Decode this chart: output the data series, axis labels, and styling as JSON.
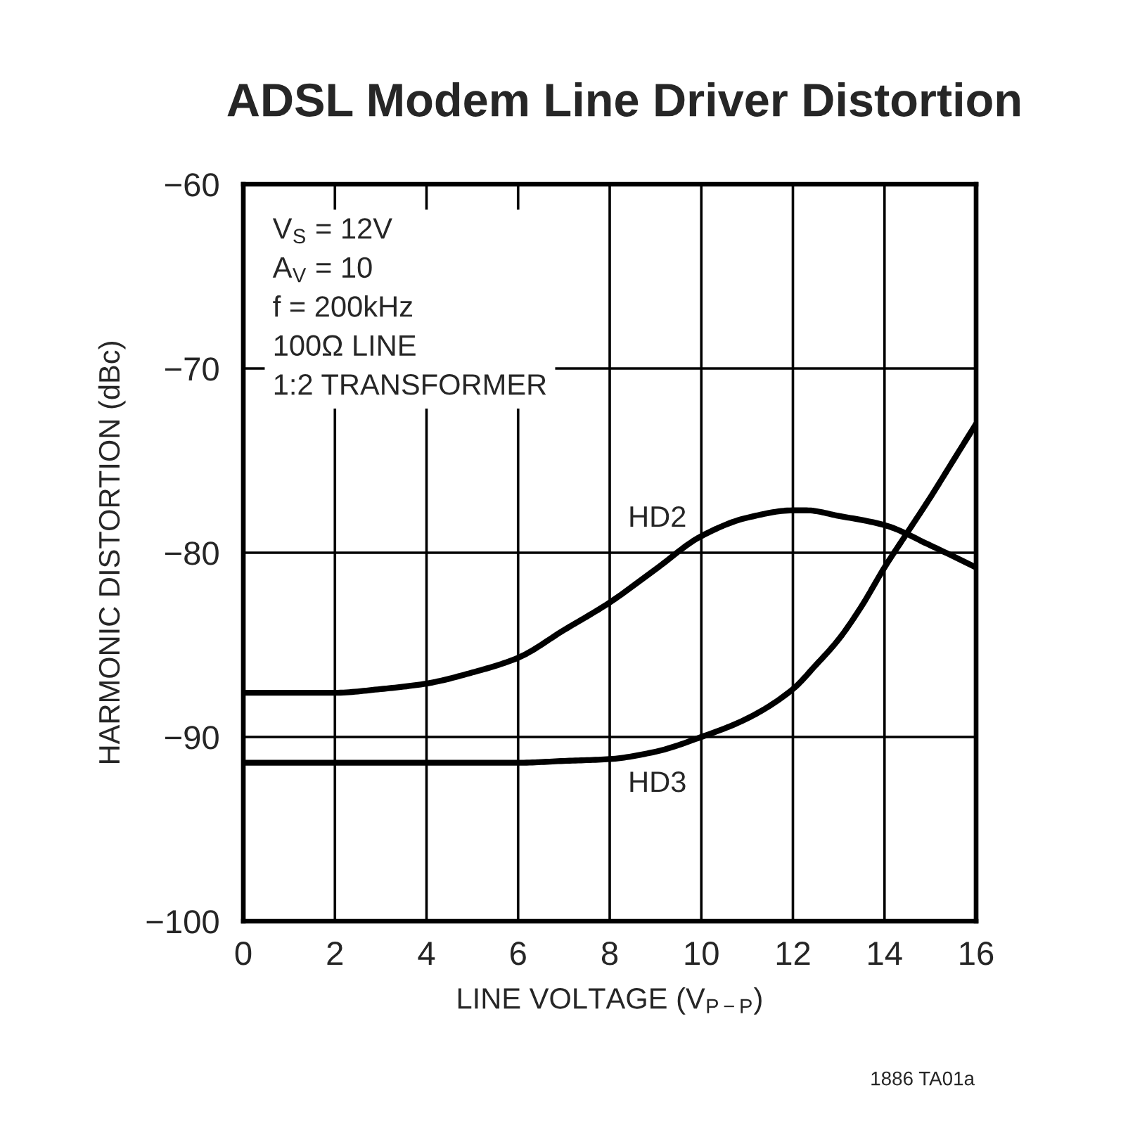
{
  "chart_data": {
    "type": "line",
    "title": "ADSL Modem Line Driver Distortion",
    "xlabel": "LINE VOLTAGE (V$_{P−P}$)",
    "ylabel": "HARMONIC DISTORTION (dBc)",
    "annotations": [
      "V$_{S}$ = 12V\nA$_{V}$ = 10\nf = 200kHz\n100Ω LINE\n1:2 TRANSFORMER",
      "1886 TA01a"
    ],
    "xlim": [
      0,
      16
    ],
    "ylim": [
      -100,
      -60
    ],
    "xticks": [
      0,
      2,
      4,
      6,
      8,
      10,
      12,
      14,
      16
    ],
    "yticks": [
      {
        "value": -100,
        "label": "−100"
      },
      {
        "value": -90,
        "label": "−90"
      },
      {
        "value": -80,
        "label": "−80"
      },
      {
        "value": -70,
        "label": "−70"
      },
      {
        "value": -60,
        "label": "−60"
      }
    ],
    "grid": true,
    "series": [
      {
        "name": "HD2",
        "color": "#000000",
        "x": [
          0,
          1,
          2,
          3,
          4,
          5,
          6,
          7,
          8,
          9,
          10,
          11,
          12,
          12.3,
          13,
          14,
          15,
          16
        ],
        "values": [
          -87.6,
          -87.6,
          -87.6,
          -87.4,
          -87.1,
          -86.5,
          -85.7,
          -84.2,
          -82.7,
          -80.9,
          -79.1,
          -78.1,
          -77.7,
          -77.7,
          -78.0,
          -78.5,
          -79.6,
          -80.8
        ]
      },
      {
        "name": "HD3",
        "color": "#000000",
        "x": [
          0,
          2,
          4,
          6,
          7,
          8,
          9,
          10,
          11,
          12,
          12.5,
          13,
          13.5,
          14,
          14.5,
          15,
          15.5,
          16
        ],
        "values": [
          -91.4,
          -91.4,
          -91.4,
          -91.4,
          -91.3,
          -91.2,
          -90.8,
          -90.0,
          -89.0,
          -87.4,
          -86.1,
          -84.7,
          -82.9,
          -80.8,
          -78.9,
          -77.0,
          -75.0,
          -73.0
        ]
      }
    ]
  }
}
